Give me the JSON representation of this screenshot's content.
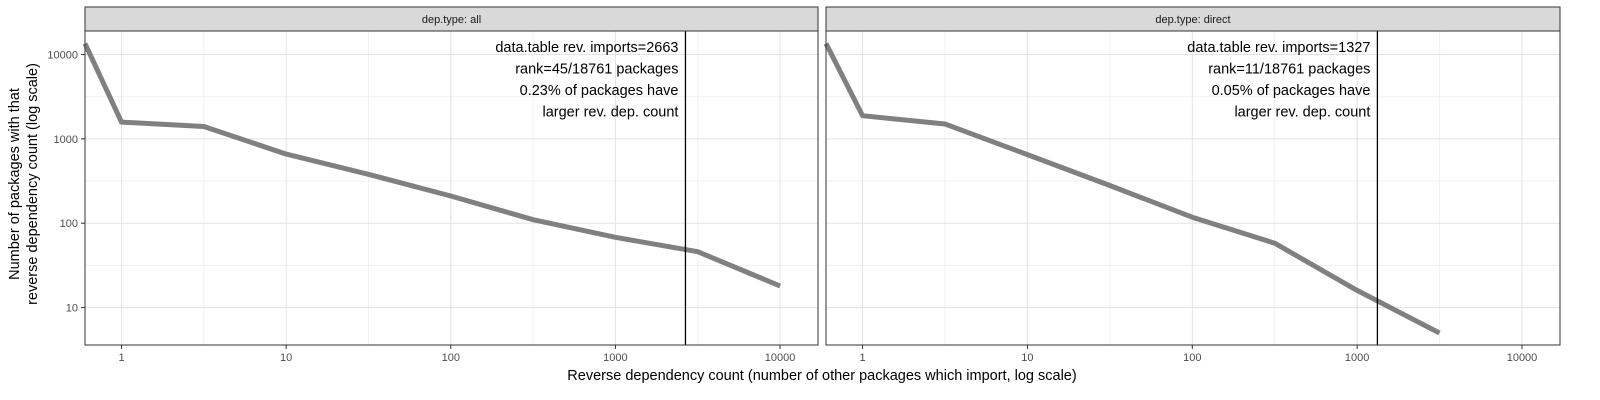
{
  "chart_data": {
    "type": "line",
    "xlabel": "Reverse dependency count (number of other packages which import, log scale)",
    "ylabel_lines": [
      "Number of packages with that",
      "reverse dependency count (log scale)"
    ],
    "x_scale": "log",
    "y_scale": "log",
    "xlim": [
      0.6,
      17000
    ],
    "ylim": [
      3.6,
      19000
    ],
    "x_ticks": [
      1,
      10,
      100,
      1000,
      10000
    ],
    "y_ticks": [
      10,
      100,
      1000,
      10000
    ],
    "grid": true,
    "line_color": "#808080",
    "vline_color": "#000000",
    "panels": [
      {
        "strip_label": "dep.type: all",
        "x": [
          0.6,
          1,
          3.16,
          10,
          31.6,
          100,
          316,
          1000,
          3160,
          10000
        ],
        "y": [
          13500,
          1580,
          1400,
          660,
          380,
          210,
          110,
          68,
          46,
          18
        ],
        "vline_x": 2663,
        "annotation": [
          "data.table rev. imports=2663",
          "rank=45/18761 packages",
          "0.23% of packages have",
          "larger rev. dep. count"
        ]
      },
      {
        "strip_label": "dep.type: direct",
        "x": [
          0.6,
          1,
          3.16,
          10,
          31.6,
          100,
          316,
          1000,
          3160
        ],
        "y": [
          13500,
          1880,
          1500,
          650,
          280,
          118,
          58,
          16,
          5
        ],
        "vline_x": 1327,
        "annotation": [
          "data.table rev. imports=1327",
          "rank=11/18761 packages",
          "0.05% of packages have",
          "larger rev. dep. count"
        ]
      }
    ]
  }
}
